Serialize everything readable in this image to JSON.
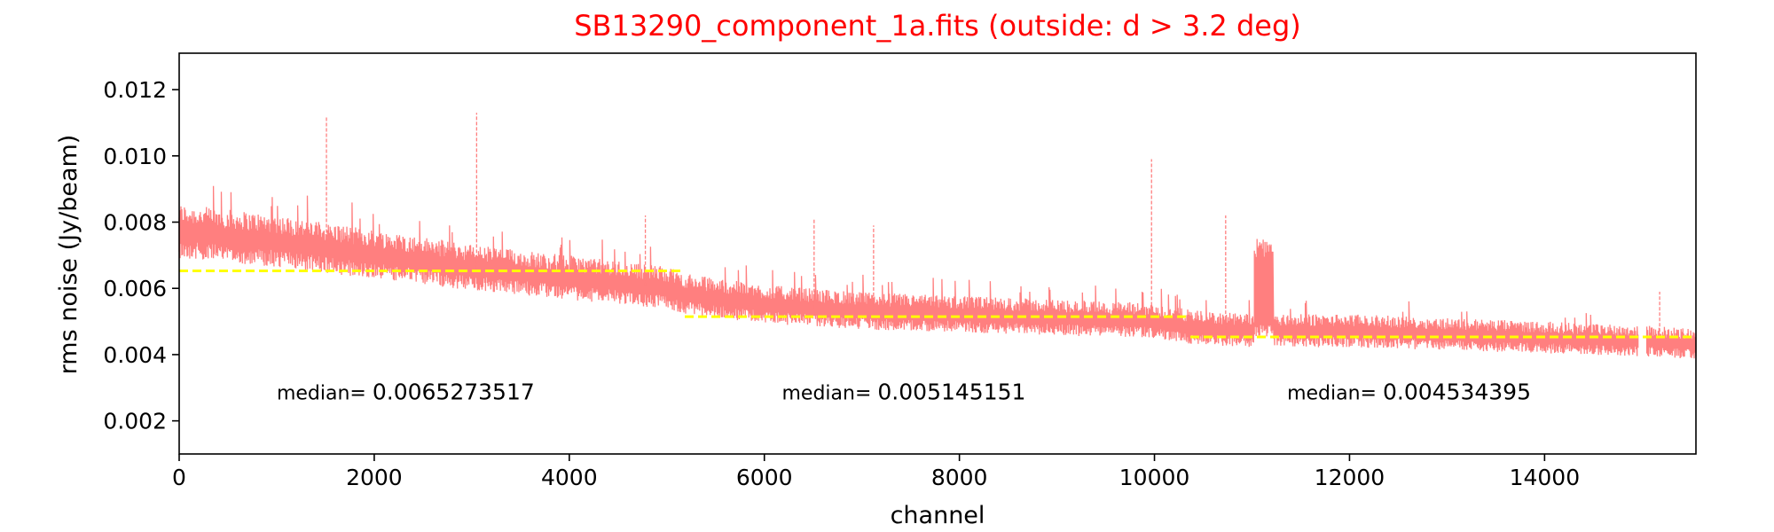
{
  "chart_data": {
    "type": "line",
    "title": "SB13290_component_1a.fits (outside: d > 3.2 deg)",
    "title_color": "#ff0000",
    "xlabel": "channel",
    "ylabel": "rms noise (Jy/beam)",
    "xlim": [
      0,
      15552
    ],
    "ylim": [
      0.001,
      0.0131
    ],
    "x_ticks": [
      0,
      2000,
      4000,
      6000,
      8000,
      10000,
      12000,
      14000
    ],
    "x_tick_labels": [
      "0",
      "2000",
      "4000",
      "6000",
      "8000",
      "10000",
      "12000",
      "14000"
    ],
    "y_ticks": [
      0.002,
      0.004,
      0.006,
      0.008,
      0.01,
      0.012
    ],
    "y_tick_labels": [
      "0.002",
      "0.004",
      "0.006",
      "0.008",
      "0.010",
      "0.012"
    ],
    "grid": false,
    "series": [
      {
        "color": "#ff7f7f",
        "style": "dashed",
        "trend_points": [
          {
            "x": 0,
            "y": 0.0077
          },
          {
            "x": 1000,
            "y": 0.0074
          },
          {
            "x": 2000,
            "y": 0.007
          },
          {
            "x": 3000,
            "y": 0.0066
          },
          {
            "x": 4000,
            "y": 0.0063
          },
          {
            "x": 5000,
            "y": 0.006
          },
          {
            "x": 5200,
            "y": 0.0058
          },
          {
            "x": 6000,
            "y": 0.0055
          },
          {
            "x": 7000,
            "y": 0.0053
          },
          {
            "x": 8000,
            "y": 0.0052
          },
          {
            "x": 9000,
            "y": 0.0051
          },
          {
            "x": 10000,
            "y": 0.005
          },
          {
            "x": 10400,
            "y": 0.0048
          },
          {
            "x": 11000,
            "y": 0.0047
          },
          {
            "x": 12000,
            "y": 0.0047
          },
          {
            "x": 13000,
            "y": 0.0046
          },
          {
            "x": 14000,
            "y": 0.0045
          },
          {
            "x": 15000,
            "y": 0.0044
          },
          {
            "x": 15552,
            "y": 0.0043
          }
        ],
        "spikes": [
          {
            "x": 1510,
            "y": 0.0112
          },
          {
            "x": 3050,
            "y": 0.0113
          },
          {
            "x": 4780,
            "y": 0.0082
          },
          {
            "x": 6510,
            "y": 0.0081
          },
          {
            "x": 7120,
            "y": 0.0079
          },
          {
            "x": 9970,
            "y": 0.0099
          },
          {
            "x": 10730,
            "y": 0.0082
          },
          {
            "x": 15180,
            "y": 0.0059
          }
        ],
        "high_block": {
          "x_start": 11020,
          "x_end": 11220,
          "y_top": 0.0075,
          "y_bottom": 0.0045
        },
        "gap": {
          "x_start": 14960,
          "x_end": 15040
        }
      }
    ],
    "medians": [
      {
        "x_start": 0,
        "x_end": 5184,
        "value": 0.0065273517,
        "label_prefix": "median=",
        "label_value": "0.0065273517",
        "label_x": 1000,
        "label_y": 0.00265
      },
      {
        "x_start": 5184,
        "x_end": 10368,
        "value": 0.005145151,
        "label_prefix": "median=",
        "label_value": "0.005145151",
        "label_x": 6180,
        "label_y": 0.00265
      },
      {
        "x_start": 10368,
        "x_end": 15552,
        "value": 0.004534395,
        "label_prefix": "median=",
        "label_value": "0.004534395",
        "label_x": 11360,
        "label_y": 0.00265
      }
    ],
    "median_color": "#ffff00"
  }
}
